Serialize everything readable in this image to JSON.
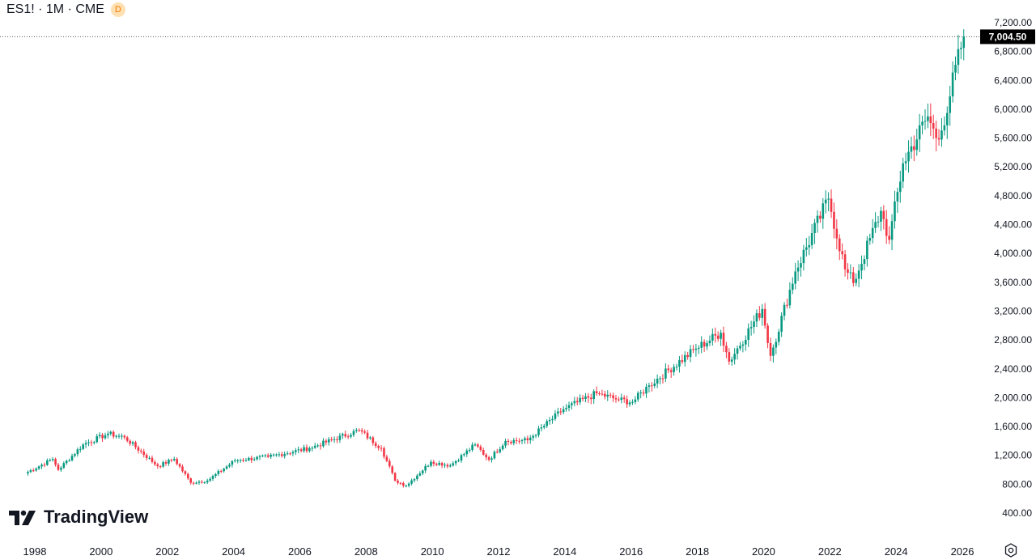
{
  "header": {
    "symbol": "ES1! · 1M · CME",
    "delay_badge": "D"
  },
  "branding": {
    "name": "TradingView"
  },
  "colors": {
    "up": "#089981",
    "down": "#f23645",
    "text": "#131722",
    "current": "#000000"
  },
  "chart_data": {
    "type": "candlestick",
    "title": "",
    "interval": "1M",
    "y_ticks": [
      "400.00",
      "800.00",
      "1,200.00",
      "1,600.00",
      "2,000.00",
      "2,400.00",
      "2,800.00",
      "3,200.00",
      "3,600.00",
      "4,000.00",
      "4,400.00",
      "4,800.00",
      "5,200.00",
      "5,600.00",
      "6,000.00",
      "6,400.00",
      "6,800.00",
      "7,200.00"
    ],
    "x_ticks": [
      "1998",
      "2000",
      "2002",
      "2004",
      "2006",
      "2008",
      "2010",
      "2012",
      "2014",
      "2016",
      "2018",
      "2020",
      "2022",
      "2024",
      "2026"
    ],
    "x_tick_years": [
      1998,
      2000,
      2002,
      2004,
      2006,
      2008,
      2010,
      2012,
      2014,
      2016,
      2018,
      2020,
      2022,
      2024,
      2026
    ],
    "ylim": [
      400,
      7200
    ],
    "current_price": "7,004.50",
    "current_price_value": 7004.5,
    "monthly_close_series": {
      "start": "1997-09",
      "anchors": [
        [
          "1997-09",
          950
        ],
        [
          "1998-07",
          1150
        ],
        [
          "1998-09",
          1000
        ],
        [
          "1999-06",
          1350
        ],
        [
          "2000-03",
          1500
        ],
        [
          "2000-09",
          1450
        ],
        [
          "2001-09",
          1050
        ],
        [
          "2002-03",
          1150
        ],
        [
          "2002-09",
          820
        ],
        [
          "2003-03",
          850
        ],
        [
          "2004-01",
          1130
        ],
        [
          "2005-01",
          1180
        ],
        [
          "2006-04",
          1300
        ],
        [
          "2007-10",
          1550
        ],
        [
          "2008-06",
          1300
        ],
        [
          "2008-11",
          850
        ],
        [
          "2009-03",
          780
        ],
        [
          "2009-12",
          1110
        ],
        [
          "2010-07",
          1060
        ],
        [
          "2011-04",
          1350
        ],
        [
          "2011-09",
          1140
        ],
        [
          "2012-03",
          1400
        ],
        [
          "2012-11",
          1410
        ],
        [
          "2013-12",
          1840
        ],
        [
          "2014-12",
          2060
        ],
        [
          "2015-08",
          1970
        ],
        [
          "2016-01",
          1940
        ],
        [
          "2016-07",
          2170
        ],
        [
          "2017-12",
          2680
        ],
        [
          "2018-09",
          2900
        ],
        [
          "2018-12",
          2500
        ],
        [
          "2019-12",
          3230
        ],
        [
          "2020-03",
          2580
        ],
        [
          "2020-12",
          3750
        ],
        [
          "2021-12",
          4760
        ],
        [
          "2022-06",
          3780
        ],
        [
          "2022-09",
          3590
        ],
        [
          "2023-07",
          4590
        ],
        [
          "2023-10",
          4190
        ],
        [
          "2024-03",
          5250
        ],
        [
          "2024-12",
          5900
        ],
        [
          "2025-03",
          5600
        ],
        [
          "2025-04",
          5580
        ],
        [
          "2025-12",
          6850
        ],
        [
          "2026-01",
          7004.5
        ]
      ]
    }
  }
}
